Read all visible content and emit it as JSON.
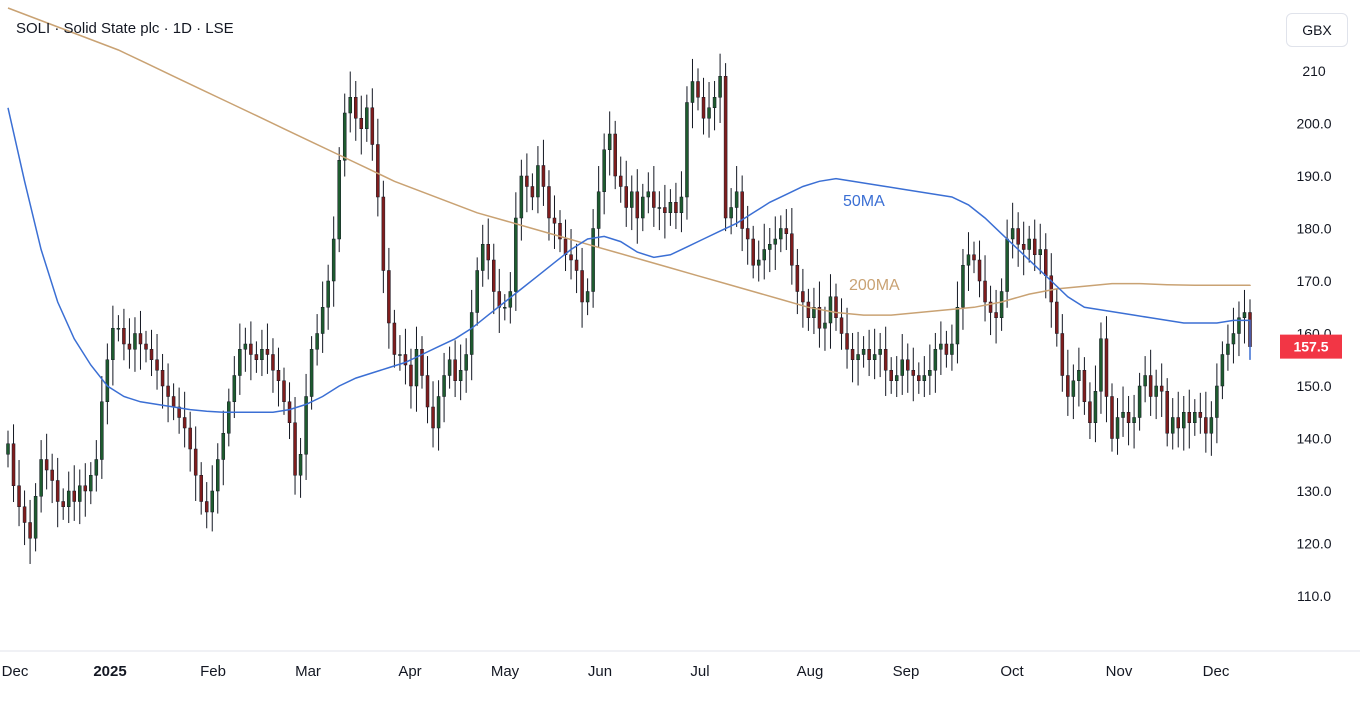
{
  "header": {
    "title": "SOLI · Solid State plc · 1D · LSE"
  },
  "currency_button": {
    "label": "GBX"
  },
  "last_price": {
    "label": "157.5",
    "value": 157.5,
    "color": "#f23645"
  },
  "chart_data": {
    "type": "candlestick",
    "title": "SOLI · Solid State plc · 1D · LSE",
    "y_axis": {
      "ticks": [
        110,
        120,
        130,
        140,
        150,
        160,
        170,
        180,
        190,
        200,
        210
      ],
      "tick_labels": [
        "110.0",
        "120.0",
        "130.0",
        "140.0",
        "150.0",
        "160.0",
        "170.0",
        "180.0",
        "190.0",
        "200.0",
        "210"
      ],
      "ylim": [
        101,
        218
      ]
    },
    "x_axis": {
      "labels": [
        "Dec",
        "2025",
        "Feb",
        "Mar",
        "Apr",
        "May",
        "Jun",
        "Jul",
        "Aug",
        "Sep",
        "Oct",
        "Nov",
        "Dec"
      ],
      "bold": [
        "2025"
      ]
    },
    "colors": {
      "up": "#1e5b2f",
      "down": "#7f1d1d",
      "wick": "#131722",
      "ma50": "#3b6fd4",
      "ma200": "#c9a273",
      "price_label": "#f23645"
    },
    "ma_labels": {
      "ma50": "50MA",
      "ma200": "200MA"
    },
    "closes": [
      139,
      131,
      127,
      124,
      121,
      129,
      136,
      134,
      132,
      128,
      127,
      130,
      128,
      131,
      130,
      133,
      136,
      147,
      155,
      161,
      161,
      158,
      157,
      160,
      158,
      157,
      155,
      153,
      150,
      148,
      146,
      144,
      142,
      138,
      133,
      128,
      126,
      130,
      136,
      141,
      147,
      152,
      157,
      158,
      156,
      155,
      157,
      156,
      153,
      151,
      147,
      143,
      133,
      137,
      148,
      157,
      160,
      165,
      170,
      178,
      193,
      202,
      205,
      201,
      199,
      203,
      196,
      186,
      172,
      162,
      156,
      156,
      154,
      150,
      157,
      152,
      146,
      142,
      148,
      152,
      155,
      151,
      153,
      156,
      164,
      172,
      177,
      174,
      168,
      165,
      165,
      168,
      182,
      190,
      188,
      186,
      192,
      188,
      182,
      181,
      178,
      175,
      174,
      172,
      166,
      168,
      180,
      187,
      195,
      198,
      190,
      188,
      184,
      187,
      182,
      186,
      187,
      184,
      184,
      183,
      185,
      183,
      186,
      204,
      208,
      205,
      201,
      203,
      205,
      209,
      182,
      184,
      187,
      180,
      178,
      173,
      174,
      176,
      177,
      178,
      180,
      179,
      173,
      168,
      166,
      163,
      165,
      161,
      162,
      167,
      163,
      160,
      157,
      155,
      156,
      157,
      155,
      156,
      157,
      153,
      151,
      152,
      155,
      153,
      152,
      151,
      152,
      153,
      157,
      158,
      156,
      158,
      165,
      173,
      175,
      174,
      170,
      166,
      164,
      163,
      168,
      178,
      180,
      177,
      176,
      178,
      175,
      176,
      171,
      166,
      160,
      152,
      148,
      151,
      153,
      147,
      143,
      149,
      159,
      148,
      140,
      144,
      145,
      143,
      144,
      150,
      152,
      148,
      150,
      149,
      141,
      144,
      142,
      145,
      143,
      145,
      144,
      141,
      144,
      150,
      156,
      158,
      160,
      163,
      164,
      157.5
    ],
    "ma50": [
      203,
      189,
      176,
      166,
      159,
      154,
      150,
      148,
      147,
      146.5,
      146,
      145.5,
      145.2,
      145,
      145,
      145,
      145,
      145.5,
      146.5,
      148,
      150,
      151.5,
      152.5,
      153.5,
      154.5,
      156,
      157.5,
      159,
      161,
      163.5,
      166,
      168.5,
      171,
      173.5,
      176,
      178,
      178.5,
      177.5,
      175.5,
      174.5,
      175,
      176.5,
      178,
      179.5,
      181,
      183,
      185,
      186.5,
      188,
      189,
      189.5,
      189,
      188.5,
      188,
      187.5,
      187,
      186.5,
      186,
      184.5,
      182,
      179,
      176,
      173,
      170,
      167,
      165,
      164.5,
      164,
      163.5,
      163,
      162.5,
      162,
      162,
      162,
      162.5,
      162.5,
      162.5,
      162,
      161.5,
      161,
      160,
      159,
      158,
      156.5,
      155
    ],
    "ma50_note": "ma50 sampled every 3rd bar starting at bar 0",
    "ma200": [
      222,
      220,
      218,
      216,
      214,
      211.5,
      209,
      206.5,
      204,
      201.5,
      199,
      196.5,
      194,
      191.5,
      189,
      187,
      185,
      183,
      181.5,
      180,
      178.5,
      177,
      175.5,
      174,
      172.5,
      171,
      169.5,
      168,
      166.5,
      165,
      164,
      163.5,
      163.5,
      164,
      164.5,
      165,
      166,
      167.5,
      168.5,
      169,
      169.5,
      169.5,
      169.3,
      169.2,
      169.2,
      169.2,
      169.3
    ],
    "ma200_note": "ma200 sampled every 5th bar starting at bar 0"
  }
}
